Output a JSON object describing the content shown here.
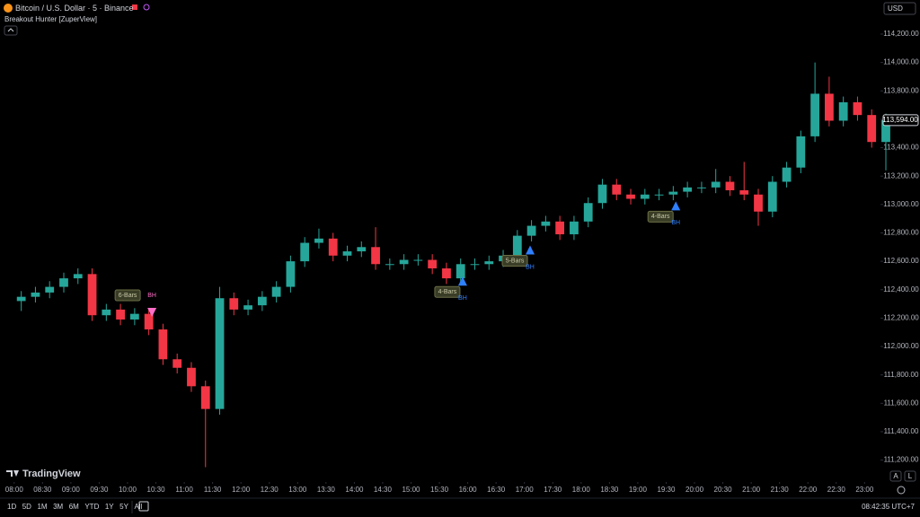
{
  "header": {
    "symbol": "Bitcoin / U.S. Dollar · 5 · Binance",
    "indicator": "Breakout Hunter [ZuperView]",
    "currency": "USD"
  },
  "footer": {
    "logo": "TradingView",
    "ranges": [
      "1D",
      "5D",
      "1M",
      "3M",
      "6M",
      "YTD",
      "1Y",
      "5Y",
      "All"
    ],
    "clock": "08:42:35 UTC+7",
    "scale_buttons": [
      "A",
      "L"
    ]
  },
  "chart_data": {
    "type": "candlestick",
    "up_color": "#26a69a",
    "down_color": "#f23645",
    "up_marker_color": "#2f80ff",
    "down_marker_color": "#ff6ec7",
    "xlim": [
      7.75,
      23.28
    ],
    "ylim": [
      111090,
      114440
    ],
    "xticks": [
      {
        "value": 8,
        "label": "08:00"
      },
      {
        "value": 8.5,
        "label": "08:30"
      },
      {
        "value": 9,
        "label": "09:00"
      },
      {
        "value": 9.5,
        "label": "09:30"
      },
      {
        "value": 10,
        "label": "10:00"
      },
      {
        "value": 10.5,
        "label": "10:30"
      },
      {
        "value": 11,
        "label": "11:00"
      },
      {
        "value": 11.5,
        "label": "11:30"
      },
      {
        "value": 12,
        "label": "12:00"
      },
      {
        "value": 12.5,
        "label": "12:30"
      },
      {
        "value": 13,
        "label": "13:00"
      },
      {
        "value": 13.5,
        "label": "13:30"
      },
      {
        "value": 14,
        "label": "14:00"
      },
      {
        "value": 14.5,
        "label": "14:30"
      },
      {
        "value": 15,
        "label": "15:00"
      },
      {
        "value": 15.5,
        "label": "15:30"
      },
      {
        "value": 16,
        "label": "16:00"
      },
      {
        "value": 16.5,
        "label": "16:30"
      },
      {
        "value": 17,
        "label": "17:00"
      },
      {
        "value": 17.5,
        "label": "17:30"
      },
      {
        "value": 18,
        "label": "18:00"
      },
      {
        "value": 18.5,
        "label": "18:30"
      },
      {
        "value": 19,
        "label": "19:00"
      },
      {
        "value": 19.5,
        "label": "19:30"
      },
      {
        "value": 20,
        "label": "20:00"
      },
      {
        "value": 20.5,
        "label": "20:30"
      },
      {
        "value": 21,
        "label": "21:00"
      },
      {
        "value": 21.5,
        "label": "21:30"
      },
      {
        "value": 22,
        "label": "22:00"
      },
      {
        "value": 22.5,
        "label": "22:30"
      },
      {
        "value": 23,
        "label": "23:00"
      }
    ],
    "yticks": [
      {
        "value": 111200,
        "label": "111,200.00"
      },
      {
        "value": 111400,
        "label": "111,400.00"
      },
      {
        "value": 111600,
        "label": "111,600.00"
      },
      {
        "value": 111800,
        "label": "111,800.00"
      },
      {
        "value": 112000,
        "label": "112,000.00"
      },
      {
        "value": 112200,
        "label": "112,200.00"
      },
      {
        "value": 112400,
        "label": "112,400.00"
      },
      {
        "value": 112600,
        "label": "112,600.00"
      },
      {
        "value": 112800,
        "label": "112,800.00"
      },
      {
        "value": 113000,
        "label": "113,000.00"
      },
      {
        "value": 113200,
        "label": "113,200.00"
      },
      {
        "value": 113400,
        "label": "113,400.00"
      },
      {
        "value": 113600,
        "label": "113,600.00"
      },
      {
        "value": 113800,
        "label": "113,800.00"
      },
      {
        "value": 114000,
        "label": "114,000.00"
      },
      {
        "value": 114200,
        "label": "114,200.00"
      }
    ],
    "last_price": {
      "value": 113594,
      "label": "113,594.00"
    },
    "x": [
      8.125,
      8.375,
      8.625,
      8.875,
      9.125,
      9.375,
      9.625,
      9.875,
      10.125,
      10.375,
      10.625,
      10.875,
      11.125,
      11.375,
      11.625,
      11.875,
      12.125,
      12.375,
      12.625,
      12.875,
      13.125,
      13.375,
      13.625,
      13.875,
      14.125,
      14.375,
      14.625,
      14.875,
      15.125,
      15.375,
      15.625,
      15.875,
      16.125,
      16.375,
      16.625,
      16.875,
      17.125,
      17.375,
      17.625,
      17.875,
      18.125,
      18.375,
      18.625,
      18.875,
      19.125,
      19.375,
      19.625,
      19.875,
      20.125,
      20.375,
      20.625,
      20.875,
      21.125,
      21.375,
      21.625,
      21.875,
      22.125,
      22.375,
      22.625,
      22.875,
      23.125,
      23.375
    ],
    "open": [
      112320,
      112350,
      112380,
      112420,
      112480,
      112510,
      112220,
      112260,
      112190,
      112230,
      112120,
      111910,
      111850,
      111720,
      111560,
      112340,
      112260,
      112290,
      112350,
      112420,
      112600,
      112730,
      112760,
      112640,
      112670,
      112700,
      112580,
      112580,
      112610,
      112610,
      112550,
      112480,
      112580,
      112580,
      112600,
      112640,
      112780,
      112850,
      112880,
      112790,
      112880,
      113010,
      113140,
      113070,
      113040,
      113070,
      113070,
      113090,
      113120,
      113120,
      113160,
      113100,
      113070,
      112950,
      113160,
      113260,
      113480,
      113780,
      113590,
      113720,
      113630,
      113440
    ],
    "high": [
      112390,
      112420,
      112460,
      112520,
      112550,
      112550,
      112300,
      112300,
      112270,
      112270,
      112160,
      111950,
      111890,
      111760,
      112420,
      112380,
      112330,
      112390,
      112460,
      112640,
      112770,
      112830,
      112800,
      112710,
      112740,
      112840,
      112620,
      112650,
      112650,
      112650,
      112590,
      112620,
      112620,
      112640,
      112680,
      112820,
      112890,
      112920,
      112920,
      112920,
      113050,
      113180,
      113180,
      113110,
      113110,
      113110,
      113130,
      113160,
      113160,
      113250,
      113200,
      113300,
      113110,
      113200,
      113300,
      113520,
      114000,
      113900,
      113760,
      113760,
      113670,
      113640
    ],
    "low": [
      112250,
      112310,
      112340,
      112380,
      112440,
      112180,
      112180,
      112150,
      112150,
      112080,
      111870,
      111810,
      111680,
      111150,
      111520,
      112220,
      112220,
      112250,
      112310,
      112380,
      112560,
      112690,
      112600,
      112600,
      112630,
      112540,
      112540,
      112540,
      112570,
      112510,
      112440,
      112440,
      112540,
      112540,
      112560,
      112600,
      112740,
      112810,
      112750,
      112750,
      112840,
      112970,
      113030,
      113000,
      113000,
      113030,
      113030,
      113050,
      113080,
      113080,
      113060,
      113030,
      112850,
      112910,
      113120,
      113220,
      113440,
      113550,
      113550,
      113590,
      113400,
      113240
    ],
    "close": [
      112350,
      112380,
      112420,
      112480,
      112510,
      112220,
      112260,
      112190,
      112230,
      112120,
      111910,
      111850,
      111720,
      111560,
      112340,
      112260,
      112290,
      112350,
      112420,
      112600,
      112730,
      112760,
      112640,
      112670,
      112700,
      112580,
      112580,
      112610,
      112610,
      112550,
      112480,
      112580,
      112580,
      112600,
      112640,
      112780,
      112850,
      112880,
      112790,
      112880,
      113010,
      113140,
      113070,
      113040,
      113070,
      113070,
      113090,
      113120,
      113120,
      113160,
      113100,
      113070,
      112950,
      113160,
      113260,
      113480,
      113780,
      113590,
      113720,
      113630,
      113440,
      113594
    ],
    "annotations": [
      {
        "label": "6-Bars",
        "tag": "BH",
        "direction": "down",
        "x": 10.43,
        "y": 112240
      },
      {
        "label": "4-Bars",
        "tag": "BH",
        "direction": "up",
        "x": 15.91,
        "y": 112460
      },
      {
        "label": "5-Bars",
        "tag": "BH",
        "direction": "up",
        "x": 17.1,
        "y": 112680
      },
      {
        "label": "4-Bars",
        "tag": "BH",
        "direction": "up",
        "x": 19.67,
        "y": 112990
      }
    ]
  }
}
